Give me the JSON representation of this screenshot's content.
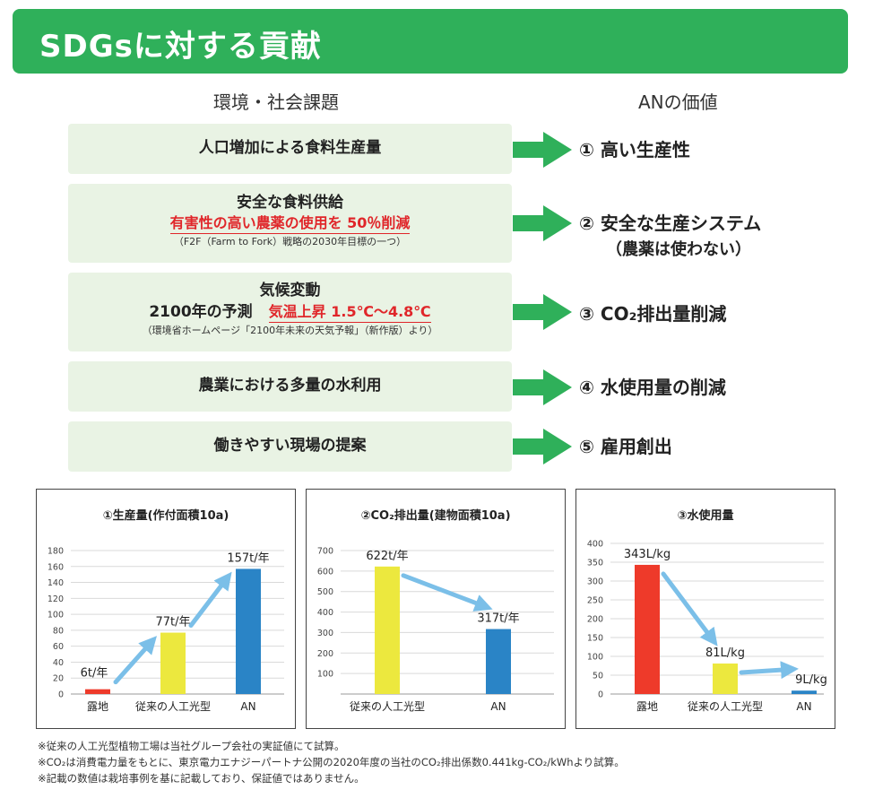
{
  "header": {
    "title": "SDGsに対する貢献"
  },
  "columns": {
    "left": "環境・社会課題",
    "right": "ANの価値"
  },
  "issues": [
    {
      "line1": "人口増加による食料生産量"
    },
    {
      "line1": "安全な食料供給",
      "red": "有害性の高い農薬の使用を 50％削減",
      "note": "（F2F（Farm to Fork）戦略の2030年目標の一つ）"
    },
    {
      "line1": "気候変動",
      "line2_black": "2100年の予測",
      "line2_red": "気温上昇 1.5℃～4.8℃",
      "note": "（環境省ホームページ「2100年未来の天気予報」（新作版）より）"
    },
    {
      "line1": "農業における多量の水利用"
    },
    {
      "line1": "働きやすい現場の提案"
    }
  ],
  "values": [
    {
      "text": "① 高い生産性"
    },
    {
      "text": "② 安全な生産システム",
      "sub": "（農薬は使わない）"
    },
    {
      "text": "③ CO₂排出量削減"
    },
    {
      "text": "④ 水使用量の削減"
    },
    {
      "text": "⑤ 雇用創出"
    }
  ],
  "colors": {
    "header": "#2fb05a",
    "panel": "#e9f3e4",
    "arrow": "#2fb05a",
    "red": "#e0262a",
    "bar_red": "#ee3a2a",
    "bar_yellow": "#ece83e",
    "bar_blue": "#2a84c6",
    "trend_arrow": "#7bbfe8"
  },
  "chart_data": [
    {
      "type": "bar",
      "title": "①生産量(作付面積10a)",
      "categories": [
        "露地",
        "従来の人工光型",
        "AN"
      ],
      "values": [
        6,
        77,
        157
      ],
      "data_labels": [
        "6t/年",
        "77t/年",
        "157t/年"
      ],
      "bar_colors": [
        "#ee3a2a",
        "#ece83e",
        "#2a84c6"
      ],
      "ylim": [
        0,
        180
      ],
      "yticks": [
        0,
        20,
        40,
        60,
        80,
        100,
        120,
        140,
        160,
        180
      ],
      "grid": true
    },
    {
      "type": "bar",
      "title": "②CO₂排出量(建物面積10a)",
      "categories": [
        "従来の人工光型",
        "AN"
      ],
      "values": [
        622,
        317
      ],
      "data_labels": [
        "622t/年",
        "317t/年"
      ],
      "bar_colors": [
        "#ece83e",
        "#2a84c6"
      ],
      "ylim": [
        0,
        700
      ],
      "yticks": [
        100,
        200,
        300,
        400,
        500,
        600,
        700
      ],
      "grid": true
    },
    {
      "type": "bar",
      "title": "③水使用量",
      "categories": [
        "露地",
        "従来の人工光型",
        "AN"
      ],
      "values": [
        343,
        81,
        9
      ],
      "data_labels": [
        "343L/kg",
        "81L/kg",
        "9L/kg"
      ],
      "bar_colors": [
        "#ee3a2a",
        "#ece83e",
        "#2a84c6"
      ],
      "ylim": [
        0,
        400
      ],
      "yticks": [
        0,
        50,
        100,
        150,
        200,
        250,
        300,
        350,
        400
      ],
      "grid": true
    }
  ],
  "notes": [
    "※従来の人工光型植物工場は当社グループ会社の実証値にて試算。",
    "※CO₂は消費電力量をもとに、東京電力エナジーパートナ公開の2020年度の当社のCO₂排出係数0.441kg-CO₂/kWhより試算。",
    "※記載の数値は栽培事例を基に記載しており、保証値ではありません。"
  ]
}
